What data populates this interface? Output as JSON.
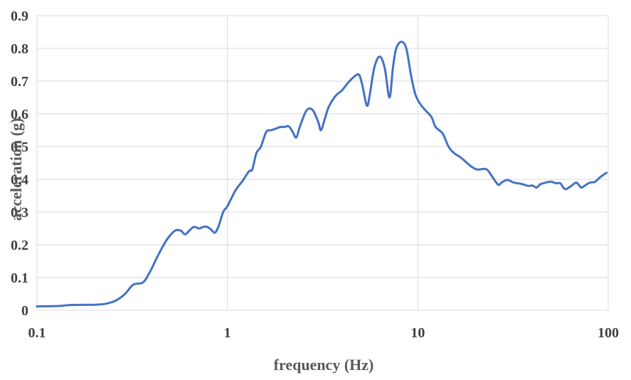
{
  "chart_data": {
    "type": "line",
    "title": "",
    "xlabel": "frequency (Hz)",
    "ylabel": "acceleration (g)",
    "x_scale": "log",
    "xlim": [
      0.1,
      100
    ],
    "ylim": [
      0,
      0.9
    ],
    "x_ticks": [
      0.1,
      1,
      10,
      100
    ],
    "x_tick_labels": [
      "0.1",
      "1",
      "10",
      "100"
    ],
    "y_ticks": [
      0,
      0.1,
      0.2,
      0.3,
      0.4,
      0.5,
      0.6,
      0.7,
      0.8,
      0.9
    ],
    "y_tick_labels": [
      "0",
      "0.1",
      "0.2",
      "0.3",
      "0.4",
      "0.5",
      "0.6",
      "0.7",
      "0.8",
      "0.9"
    ],
    "grid": true,
    "legend": false,
    "series": [
      {
        "color": "#4472c4",
        "x": [
          0.1,
          0.13,
          0.15,
          0.2,
          0.23,
          0.26,
          0.29,
          0.32,
          0.36,
          0.39,
          0.43,
          0.48,
          0.53,
          0.57,
          0.6,
          0.64,
          0.67,
          0.71,
          0.75,
          0.78,
          0.82,
          0.86,
          0.9,
          0.95,
          1.0,
          1.1,
          1.2,
          1.3,
          1.35,
          1.42,
          1.5,
          1.6,
          1.7,
          1.8,
          1.9,
          2.0,
          2.1,
          2.2,
          2.3,
          2.4,
          2.6,
          2.8,
          3.0,
          3.1,
          3.25,
          3.4,
          3.7,
          4.0,
          4.3,
          4.6,
          4.9,
          5.1,
          5.4,
          5.6,
          5.9,
          6.3,
          6.7,
          7.1,
          7.4,
          7.7,
          8.2,
          8.7,
          9.2,
          9.7,
          10.3,
          11.0,
          11.8,
          12.4,
          13.5,
          14.5,
          15.5,
          16.5,
          17.5,
          19.0,
          20.5,
          22.5,
          23.5,
          25.0,
          26.5,
          27.5,
          29.5,
          32,
          35,
          38,
          40,
          42,
          44,
          47,
          50,
          53,
          56,
          58,
          60,
          64,
          68,
          72,
          75,
          80,
          85,
          90,
          95,
          98
        ],
        "y": [
          0.012,
          0.013,
          0.016,
          0.017,
          0.02,
          0.03,
          0.05,
          0.078,
          0.085,
          0.115,
          0.165,
          0.215,
          0.243,
          0.243,
          0.232,
          0.247,
          0.255,
          0.25,
          0.255,
          0.255,
          0.247,
          0.237,
          0.258,
          0.3,
          0.318,
          0.365,
          0.395,
          0.425,
          0.43,
          0.48,
          0.5,
          0.545,
          0.55,
          0.555,
          0.56,
          0.56,
          0.562,
          0.545,
          0.528,
          0.56,
          0.61,
          0.612,
          0.575,
          0.55,
          0.585,
          0.62,
          0.655,
          0.672,
          0.695,
          0.712,
          0.72,
          0.69,
          0.625,
          0.66,
          0.74,
          0.775,
          0.74,
          0.65,
          0.74,
          0.8,
          0.82,
          0.8,
          0.72,
          0.66,
          0.63,
          0.61,
          0.59,
          0.56,
          0.54,
          0.5,
          0.48,
          0.47,
          0.458,
          0.44,
          0.43,
          0.432,
          0.425,
          0.402,
          0.383,
          0.39,
          0.398,
          0.39,
          0.386,
          0.38,
          0.381,
          0.375,
          0.385,
          0.39,
          0.393,
          0.388,
          0.388,
          0.375,
          0.37,
          0.38,
          0.39,
          0.375,
          0.38,
          0.39,
          0.392,
          0.405,
          0.415,
          0.42
        ]
      }
    ]
  }
}
